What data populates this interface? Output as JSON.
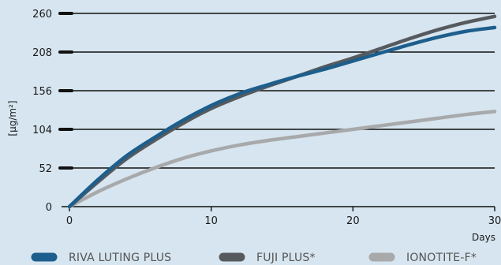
{
  "chart_data": {
    "type": "line",
    "title": "",
    "xlabel": "Days",
    "ylabel": "[µg/m²]",
    "xlim": [
      0,
      30
    ],
    "ylim": [
      0,
      260
    ],
    "x_ticks": [
      0,
      10,
      20,
      30
    ],
    "y_ticks": [
      0,
      52,
      104,
      156,
      208,
      260
    ],
    "grid": "horizontal",
    "legend_position": "bottom",
    "series": [
      {
        "name": "RIVA LUTING PLUS",
        "color": "#1d5e8c",
        "x": [
          0,
          2,
          4,
          6,
          8,
          10,
          12,
          14,
          16,
          18,
          20,
          22,
          24,
          26,
          28,
          30
        ],
        "y": [
          0,
          36,
          68,
          93,
          116,
          136,
          152,
          164,
          175,
          185,
          196,
          207,
          218,
          228,
          236,
          241
        ]
      },
      {
        "name": "FUJI PLUS*",
        "color": "#565a5e",
        "x": [
          0,
          2,
          4,
          6,
          8,
          10,
          12,
          14,
          16,
          18,
          20,
          22,
          24,
          26,
          28,
          30
        ],
        "y": [
          0,
          33,
          64,
          89,
          112,
          132,
          148,
          162,
          175,
          188,
          200,
          213,
          226,
          238,
          248,
          256
        ]
      },
      {
        "name": "IONOTITE-F*",
        "color": "#a8a9ab",
        "x": [
          0,
          2,
          4,
          6,
          8,
          10,
          12,
          14,
          16,
          18,
          20,
          22,
          24,
          26,
          28,
          30
        ],
        "y": [
          0,
          20,
          37,
          52,
          65,
          75,
          83,
          89,
          94,
          99,
          104,
          109,
          114,
          119,
          124,
          128
        ]
      }
    ]
  }
}
